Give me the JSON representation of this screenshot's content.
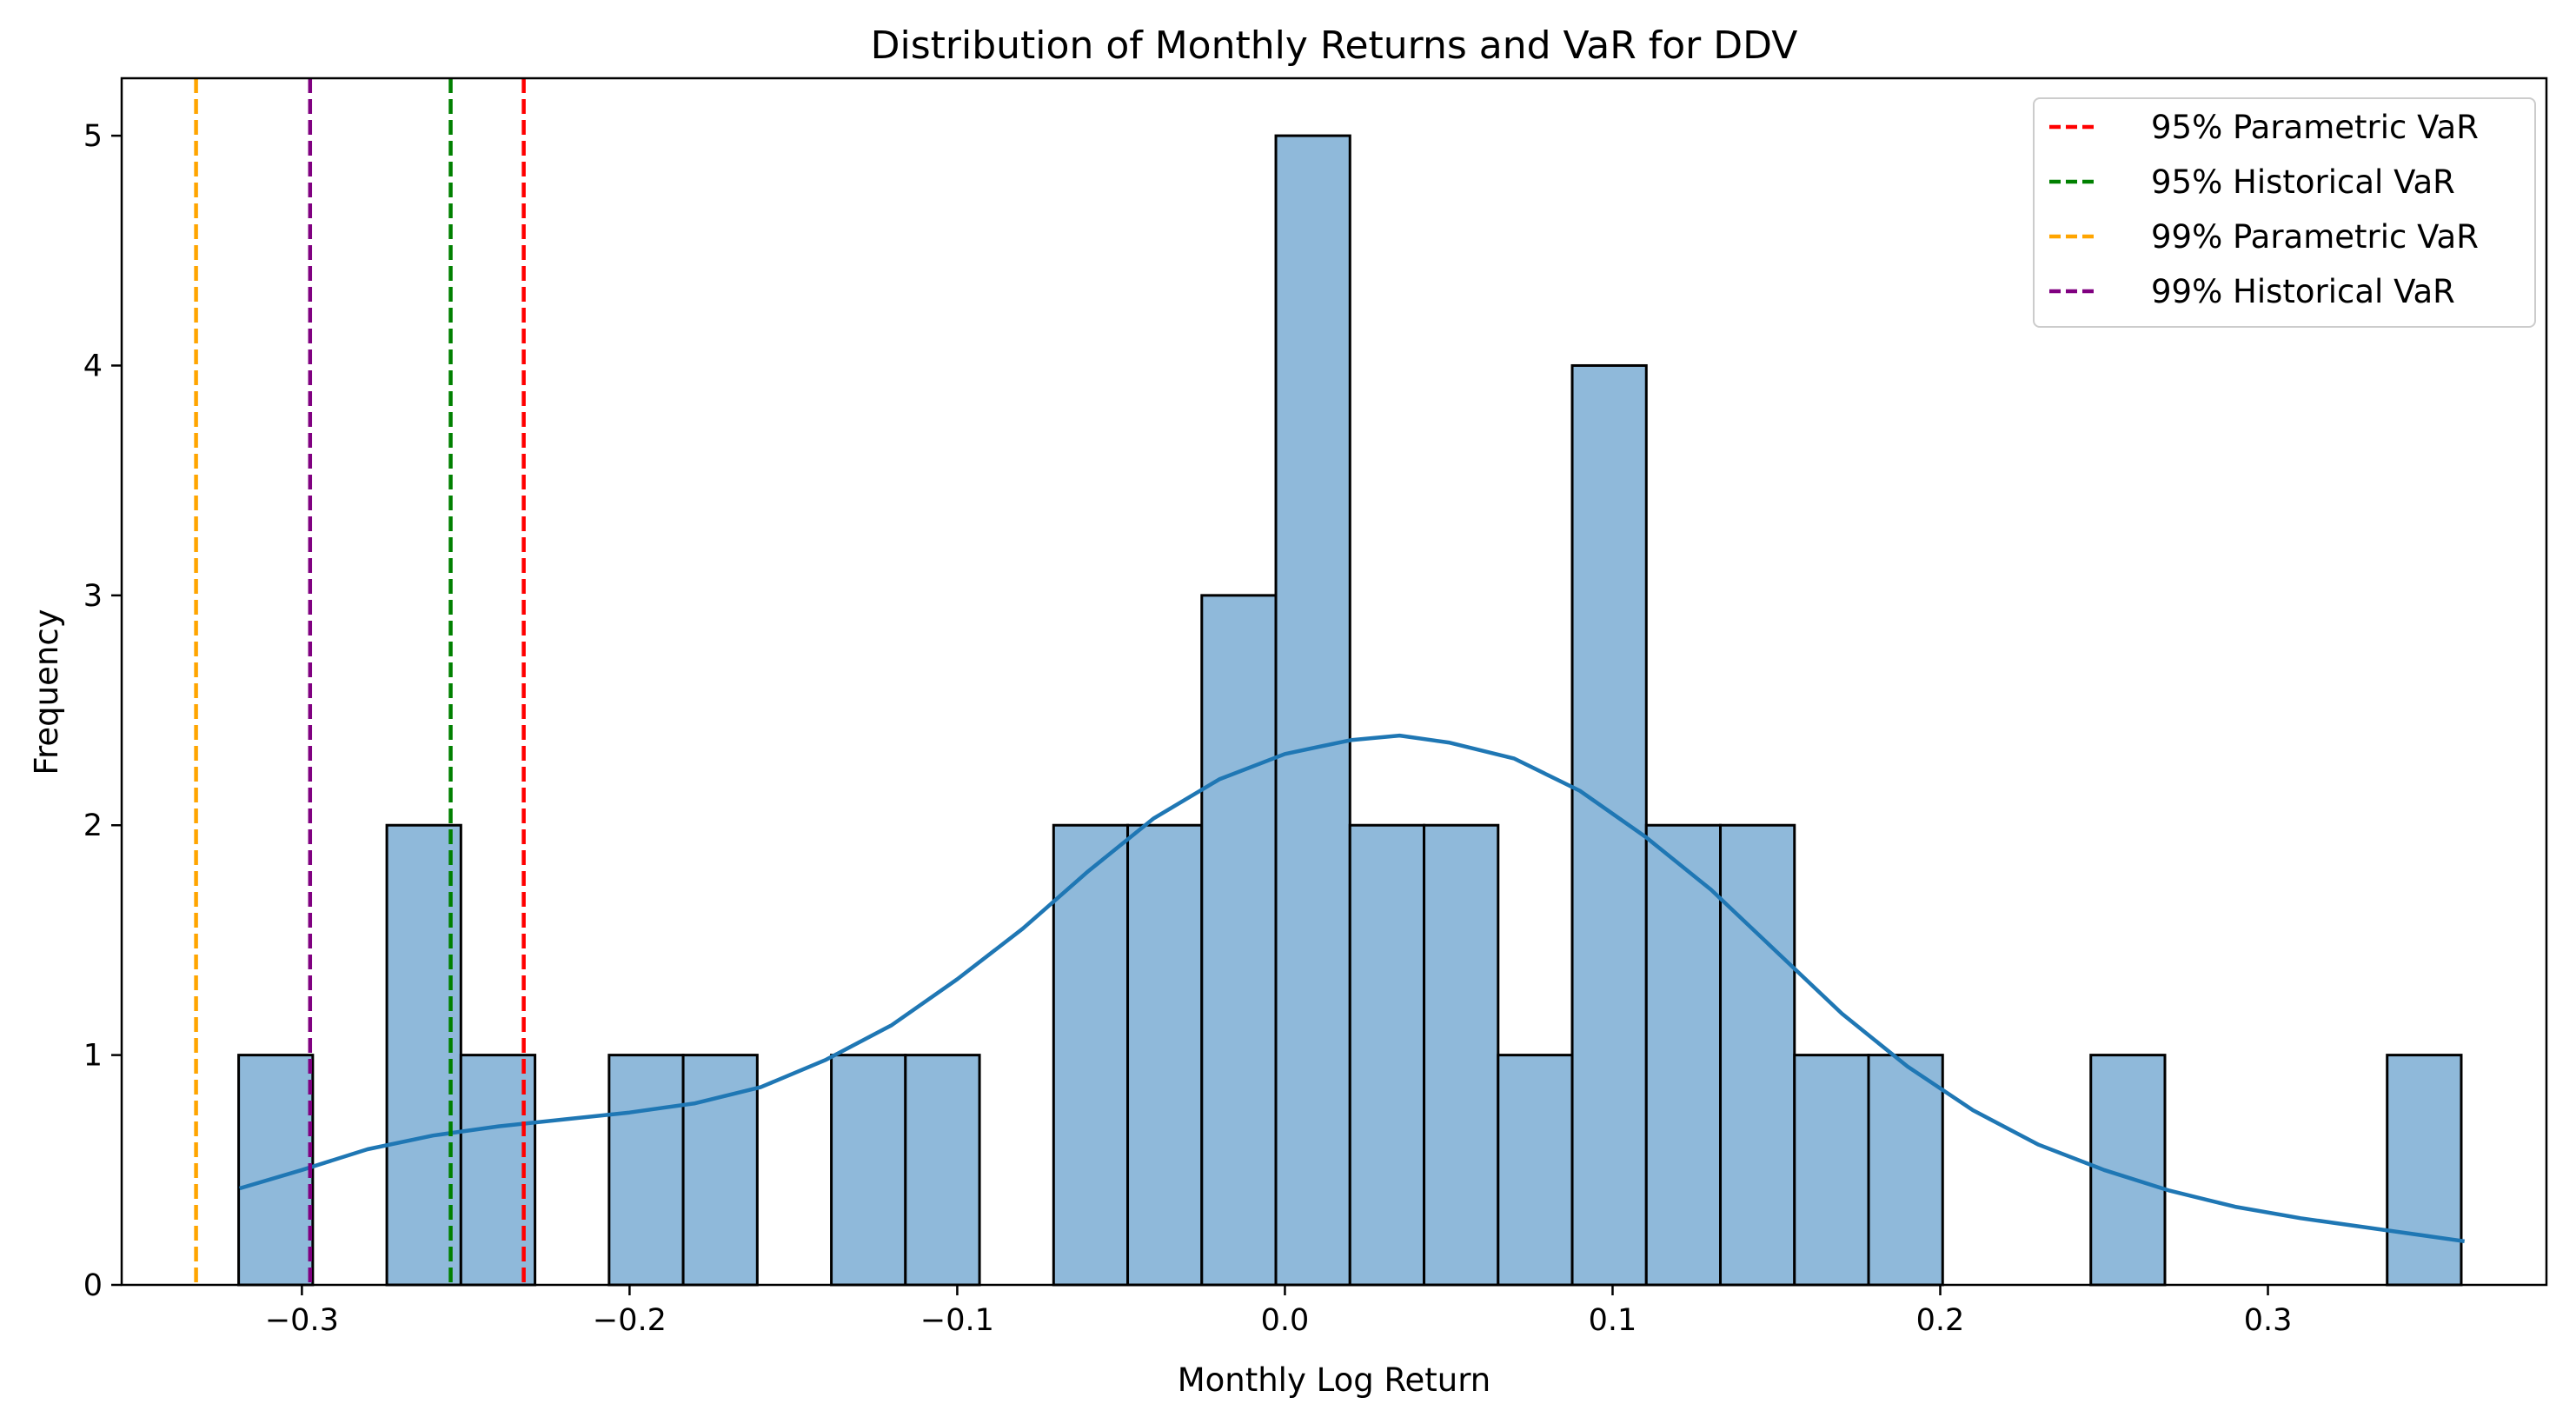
{
  "chart_data": {
    "type": "bar",
    "title": "Distribution of Monthly Returns and VaR for DDV",
    "xlabel": "Monthly Log Return",
    "ylabel": "Frequency",
    "xlim": [
      -0.355,
      0.385
    ],
    "ylim": [
      0,
      5.25
    ],
    "xticks": [
      -0.3,
      -0.2,
      -0.1,
      0.0,
      0.1,
      0.2,
      0.3
    ],
    "xtick_labels": [
      "−0.3",
      "−0.2",
      "−0.1",
      "0.0",
      "0.1",
      "0.2",
      "0.3"
    ],
    "yticks": [
      0,
      1,
      2,
      3,
      4,
      5
    ],
    "ytick_labels": [
      "0",
      "1",
      "2",
      "3",
      "4",
      "5"
    ],
    "histogram": {
      "bin_start": -0.3193,
      "bin_width": 0.02261,
      "counts": [
        1,
        0,
        2,
        1,
        0,
        1,
        1,
        0,
        1,
        1,
        0,
        2,
        2,
        3,
        5,
        2,
        2,
        1,
        4,
        2,
        2,
        1,
        1,
        0,
        0,
        1,
        0,
        0,
        0,
        1
      ],
      "color": "#8fb9da",
      "edge_color": "#000000"
    },
    "kde": {
      "color": "#1f77b4",
      "x": [
        -0.319,
        -0.3,
        -0.28,
        -0.26,
        -0.24,
        -0.22,
        -0.2,
        -0.18,
        -0.16,
        -0.14,
        -0.12,
        -0.1,
        -0.08,
        -0.06,
        -0.04,
        -0.02,
        0.0,
        0.02,
        0.035,
        0.05,
        0.07,
        0.09,
        0.11,
        0.13,
        0.15,
        0.17,
        0.19,
        0.21,
        0.23,
        0.25,
        0.27,
        0.29,
        0.31,
        0.33,
        0.35,
        0.36
      ],
      "y": [
        0.42,
        0.5,
        0.59,
        0.65,
        0.69,
        0.72,
        0.75,
        0.79,
        0.86,
        0.98,
        1.13,
        1.33,
        1.55,
        1.8,
        2.03,
        2.2,
        2.31,
        2.37,
        2.39,
        2.36,
        2.29,
        2.15,
        1.95,
        1.72,
        1.45,
        1.18,
        0.95,
        0.76,
        0.61,
        0.5,
        0.41,
        0.34,
        0.29,
        0.25,
        0.21,
        0.19
      ]
    },
    "vlines": [
      {
        "name": "95% Parametric VaR",
        "x": -0.2323,
        "color": "#ff0000"
      },
      {
        "name": "95% Historical VaR",
        "x": -0.2546,
        "color": "#008000"
      },
      {
        "name": "99% Parametric VaR",
        "x": -0.3323,
        "color": "#ffa500"
      },
      {
        "name": "99% Historical VaR",
        "x": -0.2975,
        "color": "#800080"
      }
    ],
    "legend_position": "top-right",
    "grid": false
  }
}
